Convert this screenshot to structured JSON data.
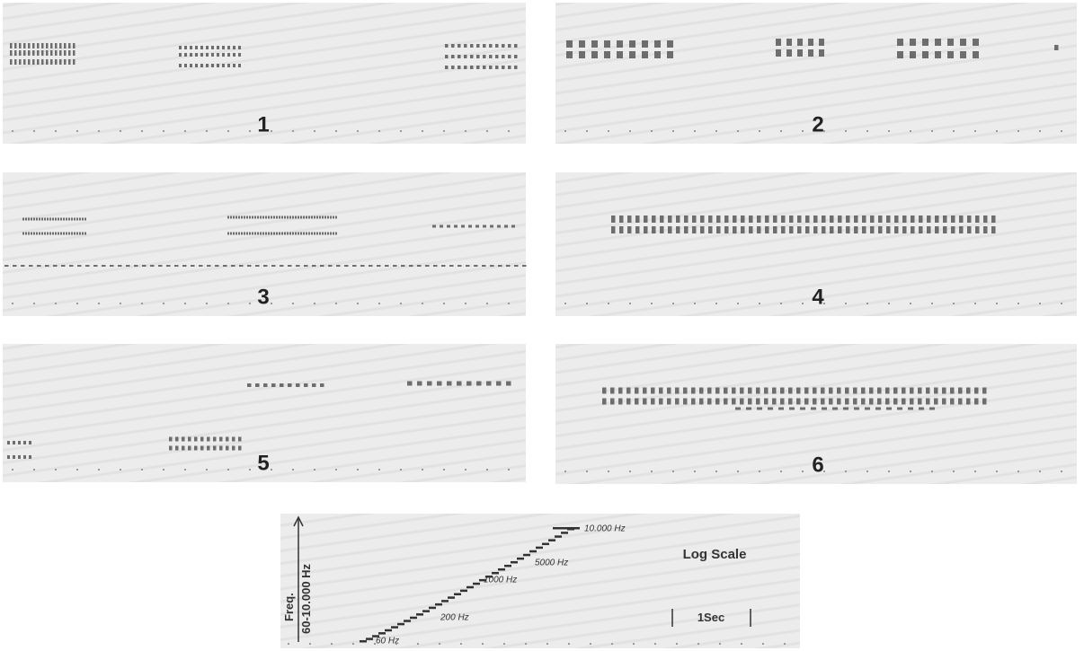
{
  "panels": [
    {
      "label": "1"
    },
    {
      "label": "2"
    },
    {
      "label": "3"
    },
    {
      "label": "4"
    },
    {
      "label": "5"
    },
    {
      "label": "6"
    }
  ],
  "scale": {
    "axis_label": "Freq.",
    "axis_range": "60-10.000 Hz",
    "levels": [
      "10.000 Hz",
      "5000 Hz",
      "1000 Hz",
      "200 Hz",
      "60 Hz"
    ],
    "title": "Log Scale",
    "time_bar": "1Sec"
  }
}
